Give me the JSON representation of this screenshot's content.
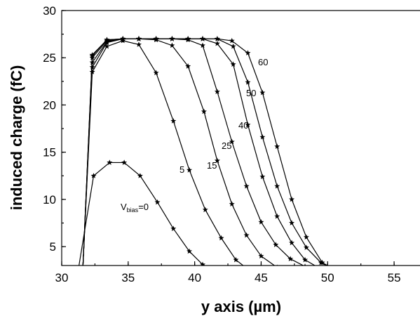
{
  "chart_data": {
    "type": "line",
    "title": "",
    "xlabel": "y axis (µm)",
    "ylabel": "induced charge (fC)",
    "xlim": [
      30,
      57
    ],
    "ylim": [
      3,
      30
    ],
    "xticks": [
      30,
      35,
      40,
      45,
      50,
      55
    ],
    "yticks": [
      5,
      10,
      15,
      20,
      25,
      30
    ],
    "grid": false,
    "legend": "none",
    "series": [
      {
        "label_main": "V",
        "label_sub": "bias",
        "label_suffix": "=0",
        "line": [
          [
            31.3,
            3
          ],
          [
            32.4,
            12.5
          ]
        ],
        "points": [
          [
            32.4,
            12.5
          ],
          [
            33.6,
            13.9
          ],
          [
            34.7,
            13.9
          ],
          [
            35.9,
            12.5
          ],
          [
            37.2,
            9.7
          ],
          [
            38.4,
            6.9
          ],
          [
            39.6,
            4.5
          ],
          [
            40.6,
            3.1
          ],
          [
            41.2,
            2.7
          ]
        ]
      },
      {
        "label": "5",
        "line": [
          [
            31.6,
            3
          ],
          [
            32.3,
            23.5
          ]
        ],
        "points": [
          [
            32.3,
            23.5
          ],
          [
            33.4,
            26.2
          ],
          [
            34.6,
            26.8
          ],
          [
            35.8,
            26.4
          ],
          [
            37.1,
            23.4
          ],
          [
            38.4,
            18.3
          ],
          [
            39.6,
            13.1
          ],
          [
            40.8,
            8.9
          ],
          [
            42.0,
            5.9
          ],
          [
            43.1,
            3.6
          ],
          [
            44.1,
            2.5
          ]
        ]
      },
      {
        "label": "15",
        "line": [
          [
            31.6,
            3
          ],
          [
            32.3,
            24.0
          ]
        ],
        "points": [
          [
            32.3,
            24.0
          ],
          [
            33.4,
            26.6
          ],
          [
            34.6,
            27.0
          ],
          [
            35.8,
            27.0
          ],
          [
            37.1,
            26.9
          ],
          [
            38.3,
            26.3
          ],
          [
            39.5,
            24.1
          ],
          [
            40.7,
            19.3
          ],
          [
            41.7,
            14.1
          ],
          [
            42.8,
            9.5
          ],
          [
            43.9,
            6.2
          ],
          [
            45.0,
            4.0
          ],
          [
            46.2,
            2.8
          ]
        ]
      },
      {
        "label": "25",
        "line": [
          [
            31.6,
            3
          ],
          [
            32.3,
            24.5
          ]
        ],
        "points": [
          [
            32.3,
            24.5
          ],
          [
            33.4,
            26.7
          ],
          [
            34.6,
            27.0
          ],
          [
            35.8,
            27.0
          ],
          [
            37.1,
            27.0
          ],
          [
            38.3,
            27.0
          ],
          [
            39.5,
            26.9
          ],
          [
            40.6,
            26.3
          ],
          [
            41.7,
            21.4
          ],
          [
            42.8,
            16.1
          ],
          [
            43.9,
            11.4
          ],
          [
            45.0,
            7.6
          ],
          [
            46.1,
            5.2
          ],
          [
            47.2,
            3.7
          ],
          [
            48.3,
            2.9
          ]
        ]
      },
      {
        "label": "40",
        "line": [
          [
            31.6,
            3
          ],
          [
            32.3,
            25.0
          ]
        ],
        "points": [
          [
            32.3,
            25.0
          ],
          [
            33.4,
            26.8
          ],
          [
            34.6,
            27.0
          ],
          [
            35.8,
            27.0
          ],
          [
            37.1,
            27.0
          ],
          [
            38.3,
            27.0
          ],
          [
            39.5,
            27.0
          ],
          [
            40.6,
            27.0
          ],
          [
            41.7,
            26.5
          ],
          [
            42.9,
            24.3
          ],
          [
            44.0,
            17.9
          ],
          [
            45.1,
            12.4
          ],
          [
            46.2,
            8.2
          ],
          [
            47.3,
            5.4
          ],
          [
            48.3,
            3.6
          ],
          [
            49.4,
            2.7
          ]
        ]
      },
      {
        "label": "50",
        "line": [
          [
            31.6,
            3
          ],
          [
            32.3,
            25.2
          ]
        ],
        "points": [
          [
            32.3,
            25.2
          ],
          [
            33.4,
            26.9
          ],
          [
            34.6,
            27.0
          ],
          [
            35.8,
            27.0
          ],
          [
            37.1,
            27.0
          ],
          [
            38.3,
            27.0
          ],
          [
            39.5,
            27.0
          ],
          [
            40.6,
            27.0
          ],
          [
            41.7,
            27.0
          ],
          [
            42.9,
            26.2
          ],
          [
            44.0,
            22.4
          ],
          [
            45.1,
            16.6
          ],
          [
            46.2,
            11.4
          ],
          [
            47.3,
            7.5
          ],
          [
            48.4,
            4.9
          ],
          [
            49.5,
            3.3
          ],
          [
            50.3,
            2.7
          ]
        ]
      },
      {
        "label": "60",
        "line": [
          [
            31.6,
            3
          ],
          [
            32.3,
            25.3
          ]
        ],
        "points": [
          [
            32.3,
            25.3
          ],
          [
            33.4,
            26.9
          ],
          [
            34.6,
            27.0
          ],
          [
            35.8,
            27.0
          ],
          [
            37.1,
            27.0
          ],
          [
            38.3,
            27.0
          ],
          [
            39.5,
            27.0
          ],
          [
            40.6,
            27.0
          ],
          [
            41.7,
            27.0
          ],
          [
            42.8,
            26.8
          ],
          [
            44.0,
            25.5
          ],
          [
            45.1,
            21.3
          ],
          [
            46.2,
            15.6
          ],
          [
            47.3,
            10.0
          ],
          [
            48.4,
            6.0
          ],
          [
            49.6,
            3.3
          ],
          [
            50.4,
            2.7
          ]
        ]
      }
    ]
  }
}
